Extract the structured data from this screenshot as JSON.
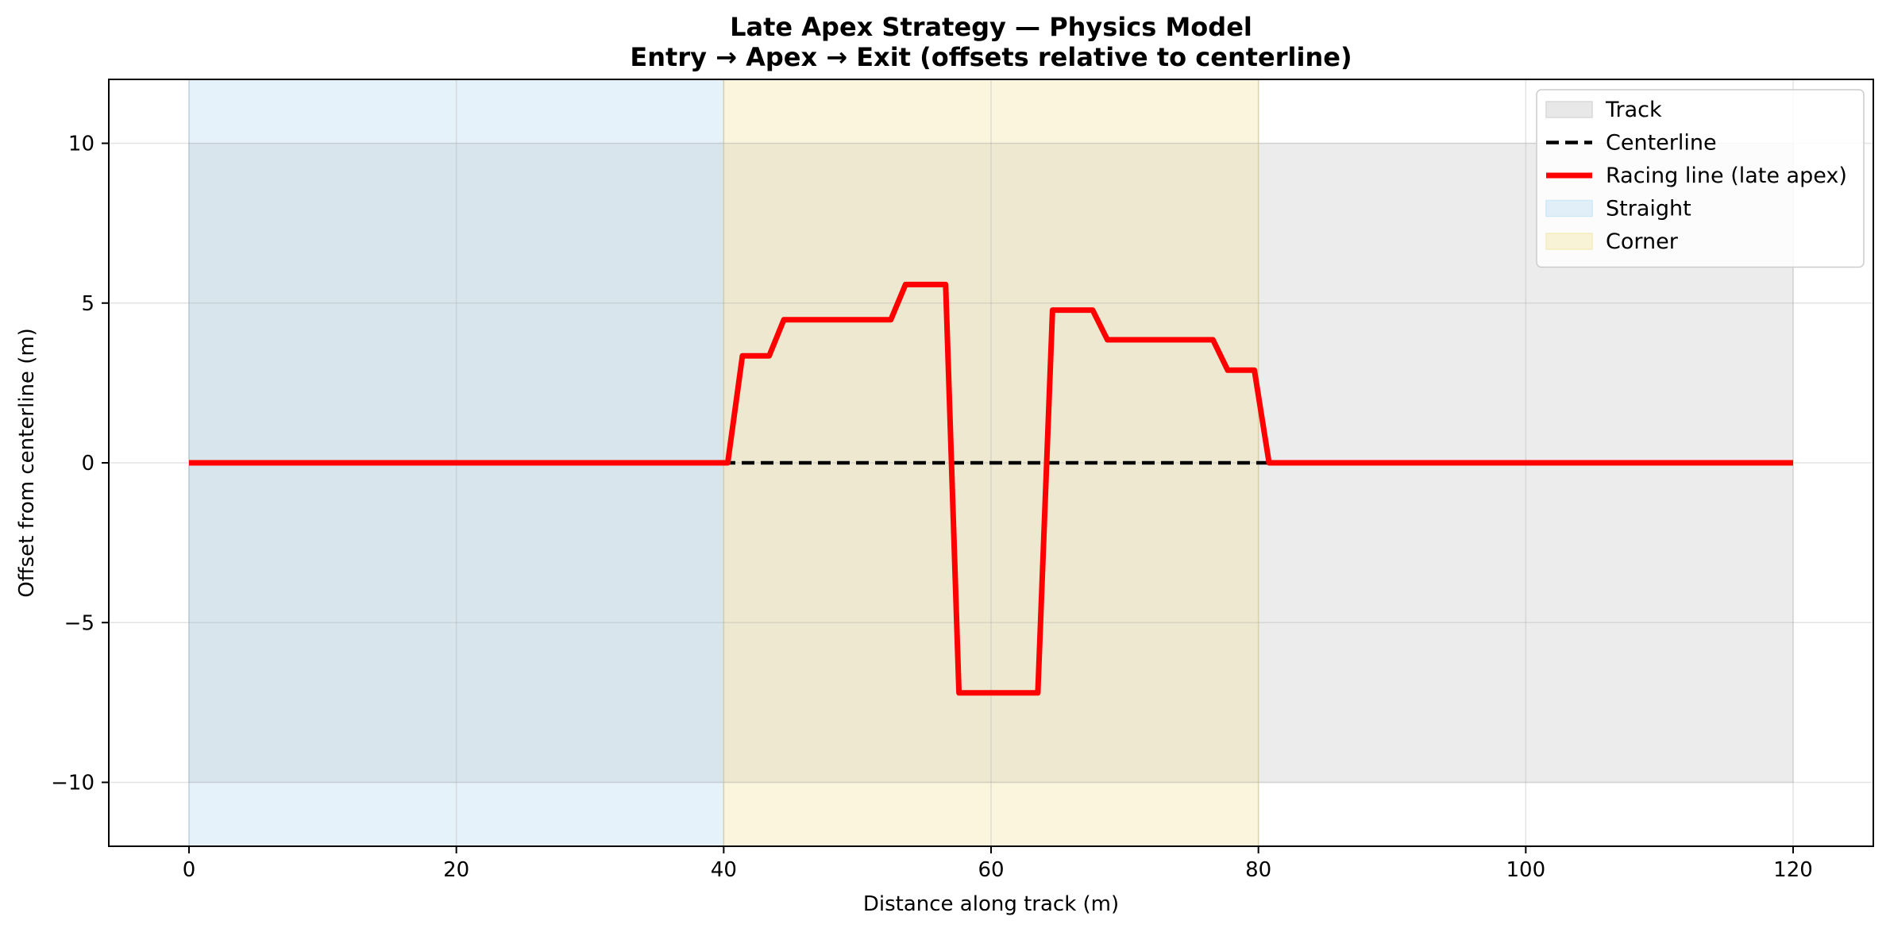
{
  "chart_data": {
    "type": "line",
    "title": "Late Apex Strategy — Physics Model",
    "subtitle": "Entry → Apex → Exit (offsets relative to centerline)",
    "xlabel": "Distance along track (m)",
    "ylabel": "Offset from centerline (m)",
    "xlim": [
      -6,
      126
    ],
    "ylim": [
      -12,
      12
    ],
    "xticks": [
      0,
      20,
      40,
      60,
      80,
      100,
      120
    ],
    "yticks": [
      10,
      5,
      0,
      -5,
      -10
    ],
    "ytick_labels": [
      "10",
      "5",
      "0",
      "−5",
      "−10"
    ],
    "xtick_labels": [
      "0",
      "20",
      "40",
      "60",
      "80",
      "100",
      "120"
    ],
    "grid": true,
    "legend_position": "top-right",
    "legend": [
      {
        "label": "Track",
        "kind": "patch",
        "color": "#d9d9d9"
      },
      {
        "label": "Centerline",
        "kind": "dashed-line",
        "color": "#000000"
      },
      {
        "label": "Racing line (late apex)",
        "kind": "line",
        "color": "#ff0000"
      },
      {
        "label": "Straight",
        "kind": "patch",
        "color": "#cfe8f5"
      },
      {
        "label": "Corner",
        "kind": "patch",
        "color": "#f5edbd"
      }
    ],
    "regions": [
      {
        "name": "Track",
        "x": [
          0,
          120
        ],
        "y": [
          -10,
          10
        ],
        "color": "#d9d9d9",
        "opacity": 0.5
      },
      {
        "name": "Straight",
        "x": [
          0,
          40
        ],
        "y": [
          -12,
          12
        ],
        "color": "#aed8ef",
        "opacity": 0.32
      },
      {
        "name": "Corner",
        "x": [
          40,
          80
        ],
        "y": [
          -12,
          12
        ],
        "color": "#f0de8a",
        "opacity": 0.3
      }
    ],
    "series": [
      {
        "name": "Centerline",
        "style": "dashed",
        "color": "#000000",
        "x": [
          0,
          120
        ],
        "y": [
          0,
          0
        ]
      },
      {
        "name": "Racing line (late apex)",
        "style": "solid",
        "color": "#ff0000",
        "x": [
          0,
          40.3,
          41.4,
          43.4,
          44.5,
          52.5,
          53.6,
          56.6,
          57.6,
          63.5,
          64.6,
          67.6,
          68.7,
          76.6,
          77.7,
          79.7,
          80.8,
          120
        ],
        "y": [
          0,
          0,
          3.35,
          3.35,
          4.48,
          4.48,
          5.58,
          5.58,
          -7.2,
          -7.2,
          4.78,
          4.78,
          3.85,
          3.85,
          2.9,
          2.9,
          0,
          0
        ]
      }
    ]
  }
}
